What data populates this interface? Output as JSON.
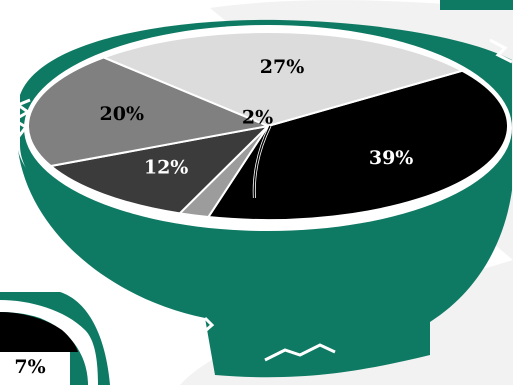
{
  "colors": {
    "bowl_green": "#0f7a63",
    "bowl_shadow": "#e6e6e6",
    "background": "#ffffff"
  },
  "chart_data": [
    {
      "type": "pie",
      "series": [
        {
          "label": "39%",
          "value": 39,
          "color": "#000000",
          "text_color": "#ffffff"
        },
        {
          "label": "2%",
          "value": 2,
          "color": "#9c9c9c",
          "text_color": "#000000"
        },
        {
          "label": "12%",
          "value": 12,
          "color": "#3b3b3b",
          "text_color": "#ffffff"
        },
        {
          "label": "20%",
          "value": 20,
          "color": "#808080",
          "text_color": "#000000"
        },
        {
          "label": "27%",
          "value": 27,
          "color": "#dcdcdc",
          "text_color": "#000000"
        }
      ]
    },
    {
      "type": "pie",
      "partial": true,
      "series": [
        {
          "label": "7%",
          "value": 7,
          "color": "#000000",
          "text_color": "#000000"
        }
      ]
    }
  ]
}
